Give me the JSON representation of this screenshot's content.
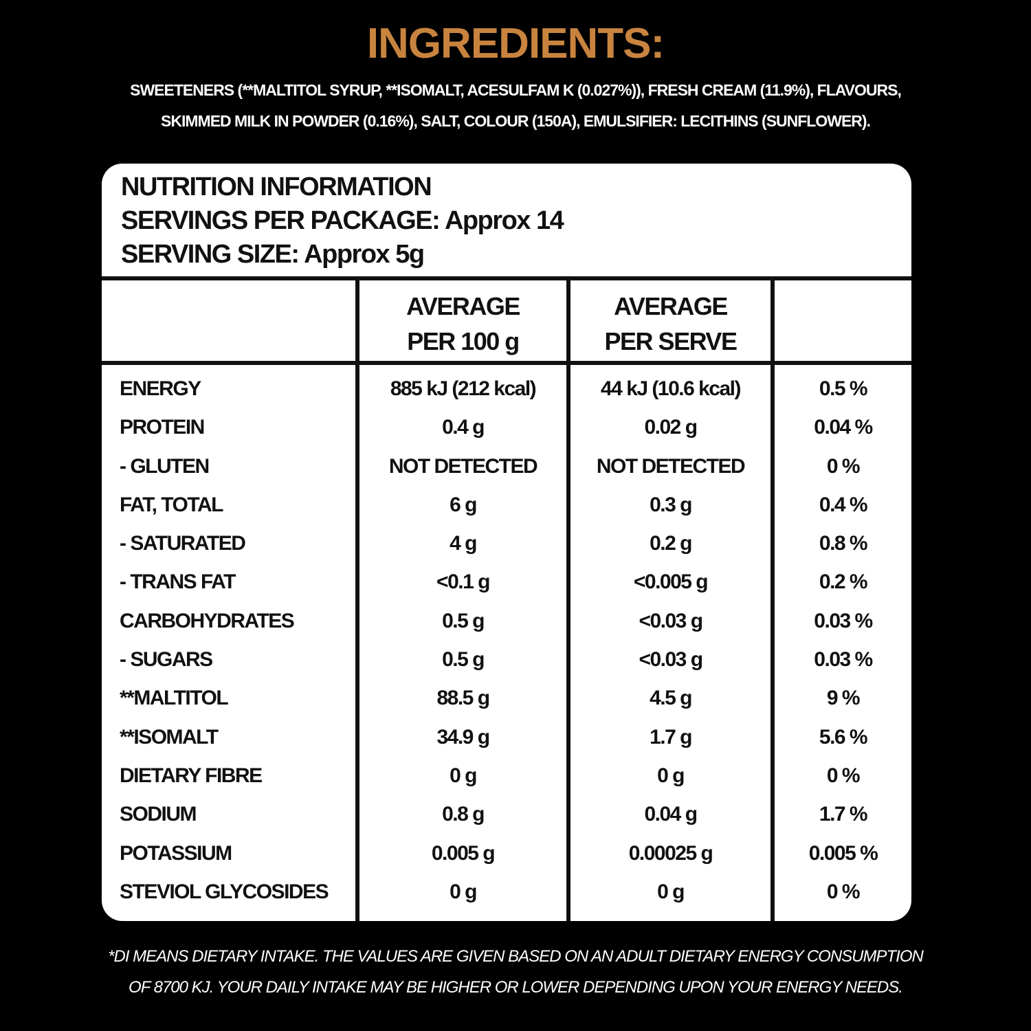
{
  "title": "INGREDIENTS:",
  "ingredients": [
    "SWEETENERS (**MALTITOL SYRUP, **ISOMALT, ACESULFAM K (0.027%)), FRESH CREAM (11.9%),  FLAVOURS,",
    "SKIMMED MILK IN POWDER (0.16%), SALT, COLOUR (150A), EMULSIFIER: LECITHINS (SUNFLOWER)."
  ],
  "nutrition": {
    "heading": "NUTRITION INFORMATION",
    "servings": "SERVINGS PER PACKAGE: Approx 14",
    "serving_size": "SERVING SIZE: Approx 5g",
    "columns": [
      "",
      "AVERAGE\nPER 100 g",
      "AVERAGE\nPER SERVE",
      ""
    ],
    "col1_lines": [
      "AVERAGE",
      "PER 100 g"
    ],
    "col2_lines": [
      "AVERAGE",
      "PER SERVE"
    ],
    "rows": [
      [
        "ENERGY",
        "885 kJ (212 kcal)",
        "44 kJ (10.6 kcal)",
        "0.5 %"
      ],
      [
        "PROTEIN",
        "0.4 g",
        "0.02 g",
        "0.04 %"
      ],
      [
        "- GLUTEN",
        "NOT DETECTED",
        "NOT DETECTED",
        "0 %"
      ],
      [
        "FAT, TOTAL",
        "6 g",
        "0.3 g",
        "0.4 %"
      ],
      [
        "- SATURATED",
        "4 g",
        "0.2 g",
        "0.8 %"
      ],
      [
        "- TRANS FAT",
        "<0.1 g",
        "<0.005 g",
        "0.2 %"
      ],
      [
        "CARBOHYDRATES",
        "0.5 g",
        "<0.03 g",
        "0.03 %"
      ],
      [
        "- SUGARS",
        "0.5 g",
        "<0.03 g",
        "0.03 %"
      ],
      [
        "**MALTITOL",
        "88.5 g",
        "4.5 g",
        "9 %"
      ],
      [
        "**ISOMALT",
        "34.9 g",
        "1.7 g",
        "5.6 %"
      ],
      [
        "DIETARY FIBRE",
        "0 g",
        "0 g",
        "0 %"
      ],
      [
        "SODIUM",
        "0.8 g",
        "0.04 g",
        "1.7  %"
      ],
      [
        "POTASSIUM",
        "0.005 g",
        "0.00025 g",
        "0.005 %"
      ],
      [
        "STEVIOL GLYCOSIDES",
        "0 g",
        "0 g",
        "0 %"
      ]
    ]
  },
  "footnote": [
    "*DI MEANS DIETARY INTAKE. THE VALUES ARE GIVEN BASED ON AN ADULT DIETARY ENERGY CONSUMPTION",
    "OF 8700 KJ. YOUR DAILY INTAKE MAY BE HIGHER OR LOWER DEPENDING UPON YOUR ENERGY NEEDS."
  ],
  "colors": {
    "title": "#c8843f",
    "background": "#000000",
    "panel": "#ffffff"
  }
}
